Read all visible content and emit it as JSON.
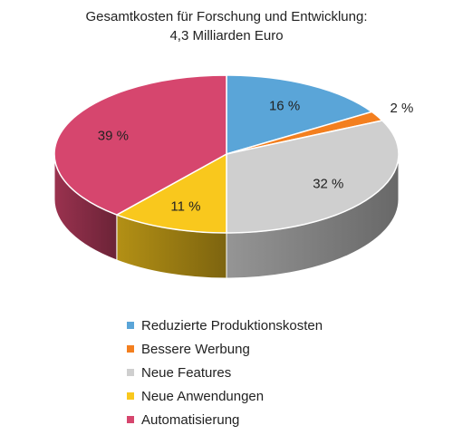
{
  "chart_data": {
    "type": "pie",
    "title": [
      "Gesamtkosten für Forschung und Entwicklung:",
      "4,3 Milliarden Euro"
    ],
    "categories": [
      "Reduzierte Produktionskosten",
      "Bessere Werbung",
      "Neue Features",
      "Neue Anwendungen",
      "Automatisierung"
    ],
    "values": [
      16,
      2,
      32,
      11,
      39
    ],
    "labels": [
      "16 %",
      "2 %",
      "32 %",
      "11 %",
      "39 %"
    ],
    "colors": [
      "#5aa5d8",
      "#f37f1f",
      "#cfcfcf",
      "#f9c81d",
      "#d6466e"
    ],
    "legend_position": "bottom",
    "style": "3d"
  }
}
